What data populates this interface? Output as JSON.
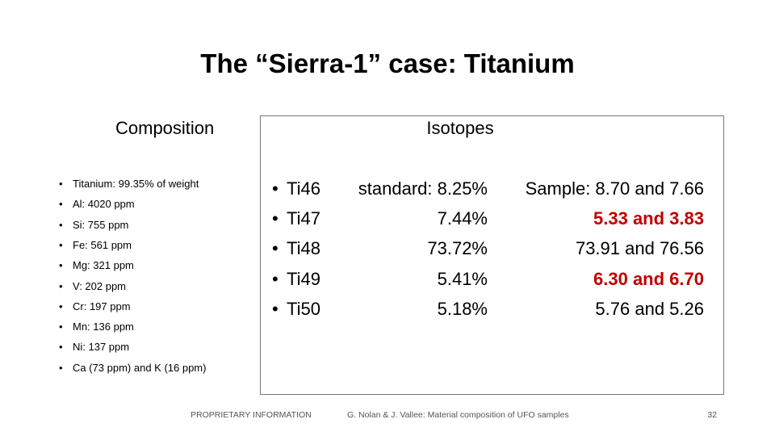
{
  "header": {
    "title": "The “Sierra-1” case: Titanium"
  },
  "composition": {
    "heading": "Composition",
    "items": [
      "Titanium: 99.35% of weight",
      "Al: 4020 ppm",
      "Si: 755 ppm",
      "Fe: 561 ppm",
      "Mg: 321 ppm",
      "V: 202 ppm",
      "Cr: 197 ppm",
      "Mn: 136 ppm",
      "Ni: 137 ppm",
      "Ca (73 ppm) and K (16 ppm)"
    ]
  },
  "isotopes": {
    "heading": "Isotopes",
    "rows": [
      {
        "isotope": "Ti46",
        "standard": "standard: 8.25%",
        "sample": "Sample: 8.70 and 7.66",
        "sample_color": "#000000"
      },
      {
        "isotope": "Ti47",
        "standard": "7.44%",
        "sample": "5.33 and 3.83",
        "sample_color": "#c00000"
      },
      {
        "isotope": "Ti48",
        "standard": "73.72%",
        "sample": "73.91 and 76.56",
        "sample_color": "#000000"
      },
      {
        "isotope": "Ti49",
        "standard": "5.41%",
        "sample": "6.30 and 6.70",
        "sample_color": "#c00000"
      },
      {
        "isotope": "Ti50",
        "standard": "5.18%",
        "sample": "5.76 and 5.26",
        "sample_color": "#000000"
      }
    ]
  },
  "footer": {
    "left": "PROPRIETARY INFORMATION",
    "center": "G. Nolan & J. Vallee: Material composition of UFO samples",
    "page": "32"
  }
}
